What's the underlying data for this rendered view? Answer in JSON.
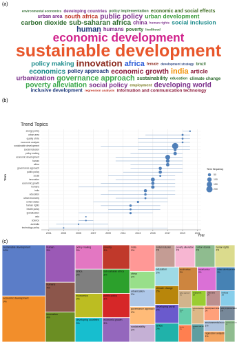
{
  "chart_data": [
    {
      "type": "wordcloud",
      "label": "(a)",
      "words": [
        "environmental economics",
        "developing countries",
        "policy implementation",
        "economic and social effects",
        "urban area",
        "south africa",
        "public policy",
        "urban development",
        "carbon dioxide",
        "sub-saharan africa",
        "china",
        "human rights",
        "social inclusion",
        "human",
        "humans",
        "poverty",
        "livelihood",
        "economic development",
        "sustainable development",
        "policy making",
        "innovation",
        "africa",
        "female",
        "development strategy",
        "brazil",
        "economics",
        "policy approach",
        "economic growth",
        "india",
        "article",
        "urbanization",
        "governance approach",
        "sustainability",
        "education",
        "climate change",
        "poverty alleviation",
        "social policy",
        "employment",
        "developing world",
        "inclusive development",
        "regression analysis",
        "information and communication technology"
      ],
      "values": [
        6,
        8,
        7,
        9,
        9,
        11,
        13,
        11,
        12,
        13,
        10,
        6,
        11,
        14,
        10,
        9,
        6,
        22,
        32,
        12,
        17,
        14,
        7,
        6,
        7,
        13,
        10,
        13,
        14,
        11,
        12,
        14,
        9,
        7,
        8,
        13,
        12,
        7,
        13,
        9,
        6,
        8
      ],
      "colors": [
        "#2e6b2e",
        "#7a2e8a",
        "#2e6b2e",
        "#3b6b1e",
        "#7a2e8a",
        "#c0392b",
        "#7a2e8a",
        "#3a9a3a",
        "#2e6b2e",
        "#2e6b2e",
        "#7a2e8a",
        "#7a2e8a",
        "#1a8a8a",
        "#1f3a7a",
        "#7a2e8a",
        "#2e6b2e",
        "#2e6b2e",
        "#d0218b",
        "#e8562a",
        "#1a8a8a",
        "#8b2a1e",
        "#2a5bd7",
        "#8b2a1e",
        "#1f3a7a",
        "#2e6b2e",
        "#1a8a8a",
        "#1f3a7a",
        "#8b1a3a",
        "#f08c00",
        "#8b1a3a",
        "#7a2e8a",
        "#3aa84a",
        "#2e6b2e",
        "#2e6b2e",
        "#2e6b2e",
        "#3aa84a",
        "#7a2e8a",
        "#7a7a1e",
        "#7a2e8a",
        "#1f3a7a",
        "#c0392b",
        "#8b1a3a"
      ]
    },
    {
      "type": "trend-topics",
      "label": "(b)",
      "title": "Trend Topics",
      "xlabel": "Year",
      "ylabel": "Term",
      "categories": [
        "energy policy",
        "urban area",
        "quality of life",
        "economic analysis",
        "sustainable development",
        "social inclusion",
        "policy making",
        "economic development",
        "human",
        "africa",
        "governance approach",
        "public policy",
        "social",
        "innovation",
        "economic growth",
        "humans",
        "india",
        "education",
        "urban economy",
        "united states",
        "human rights",
        "health policy",
        "globalization",
        "asia",
        "science",
        "australia",
        "technology policy"
      ],
      "median": [
        2020,
        2019,
        2019,
        2019,
        2018,
        2018,
        2018,
        2017,
        2017,
        2017,
        2016,
        2016,
        2016,
        2015,
        2015,
        2015,
        2014,
        2014,
        2014,
        2013,
        2012,
        2012,
        2012,
        2006,
        2006,
        2005,
        2003
      ],
      "q1": [
        2019,
        2014,
        2013,
        2013,
        2008,
        2013,
        2012,
        2010,
        2010,
        2012,
        2012,
        2011,
        2009,
        2010,
        2008,
        2005,
        2009,
        2008,
        2010,
        2007,
        2008,
        2009,
        2005,
        2006,
        2005,
        2002,
        2001
      ],
      "q3": [
        2020,
        2020,
        2020,
        2020,
        2020,
        2020,
        2019,
        2019,
        2019,
        2019,
        2019,
        2019,
        2018,
        2018,
        2018,
        2018,
        2018,
        2018,
        2017,
        2017,
        2016,
        2016,
        2015,
        2006,
        2007,
        2009,
        2017
      ],
      "frequency": [
        15,
        20,
        18,
        18,
        200,
        40,
        60,
        120,
        70,
        60,
        50,
        55,
        20,
        80,
        55,
        60,
        50,
        30,
        20,
        25,
        30,
        20,
        25,
        10,
        12,
        12,
        12
      ],
      "xlim": [
        2000,
        2021.5
      ],
      "xticks": [
        2001,
        2003,
        2005,
        2007,
        2009,
        2011,
        2013,
        2015,
        2017,
        2019,
        2021
      ],
      "legend_title": "Term frequency",
      "legend_values": [
        50,
        100,
        150,
        200
      ],
      "color": "#4f7fb8",
      "grid": true
    },
    {
      "type": "treemap",
      "label": "(c)",
      "categories": [
        "sustainable development",
        "economic development",
        "human",
        "humans",
        "innovation",
        "policy making",
        "africa",
        "economics",
        "developing countries",
        "poverty",
        "sub-saharan africa",
        "public policy",
        "economic growth",
        "india",
        "china",
        "urbanization",
        "governance approach",
        "sustainability",
        "social inclusion",
        "poverty alleviation",
        "carbon dioxide",
        "human rights",
        "education",
        "climate change",
        "developing world",
        "article",
        "south africa",
        "social policy",
        "urban development",
        "policy approach",
        "brazil",
        "female",
        "employment",
        "urban area",
        "livelihood",
        "inclusive development",
        "economic and social effects",
        "development strategy",
        "policy implementation",
        "environmental economics",
        "regression analysis",
        "information and communication technology"
      ],
      "values": [
        10,
        9,
        5,
        4,
        4,
        3,
        3,
        3,
        3,
        3,
        3,
        3,
        3,
        3,
        2,
        2,
        2,
        2,
        2,
        2,
        2,
        2,
        2,
        2,
        2,
        2,
        2,
        2,
        2,
        1,
        1,
        1,
        1,
        1,
        1,
        1,
        1,
        1,
        1,
        1,
        1,
        1
      ],
      "value_labels": [
        "10%",
        "9%",
        "5%",
        "4%",
        "4%",
        "3%",
        "3%",
        "3%",
        "3%",
        "3%",
        "3%",
        "3%",
        "3%",
        "3%",
        "2%",
        "2%",
        "2%",
        "2%",
        "2%",
        "2%",
        "2%",
        "2%",
        "2%",
        "2%",
        "2%",
        "2%",
        "2%",
        "2%",
        "2%",
        "1%",
        "1%",
        "1%",
        "1%",
        "1%",
        "1%",
        "1%",
        "1%",
        "1%",
        "1%",
        "1%",
        "1%",
        "1%"
      ],
      "colors": [
        "#5b7dc8",
        "#f28e2b",
        "#9b59b6",
        "#8c564b",
        "#6b8e23",
        "#e377c2",
        "#7f7f7f",
        "#bcbd22",
        "#17becf",
        "#c0392b",
        "#2ca02c",
        "#d62728",
        "#9467bd",
        "#ff9896",
        "#98df8a",
        "#aec7e8",
        "#ffbb78",
        "#c5b0d5",
        "#c49c94",
        "#f7b6d2",
        "#8fbc8f",
        "#dbdb8d",
        "#9edae5",
        "#b8860b",
        "#6a5acd",
        "#20b2aa",
        "#cd853f",
        "#da70d6",
        "#4682b4",
        "#d2b48c",
        "#66cdaa",
        "#ff7f50",
        "#9acd32",
        "#bc8f8f",
        "#87ceeb",
        "#deb887",
        "#5f9ea0",
        "#ffa07a",
        "#778899",
        "#b0c4de",
        "#f4a460",
        "#8fbc8f"
      ]
    }
  ]
}
